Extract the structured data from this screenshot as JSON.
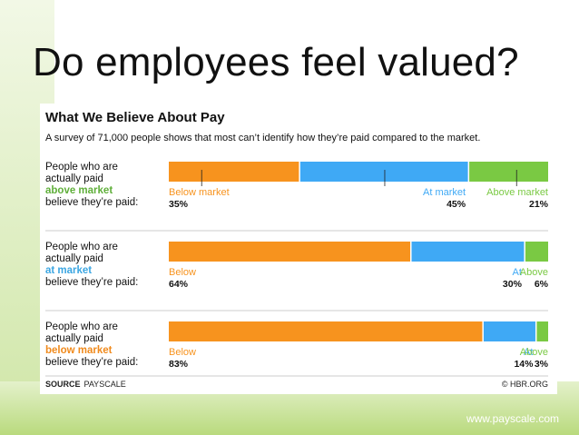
{
  "slide": {
    "title": "Do employees feel valued?",
    "website": "www.payscale.com"
  },
  "source": {
    "label": "SOURCE",
    "name": "PAYSCALE"
  },
  "credit": "© HBR.ORG",
  "rows": [
    {
      "line1": "People who are",
      "line2": "actually paid",
      "highlight": "above market",
      "line4": "believe they’re paid:"
    },
    {
      "line1": "People who are",
      "line2": "actually paid",
      "highlight": "at market",
      "line4": "believe they’re paid:"
    },
    {
      "line1": "People who are",
      "line2": "actually paid",
      "highlight": "below market",
      "line4": "believe they’re paid:"
    }
  ],
  "chart_data": {
    "type": "bar",
    "stacked": true,
    "orientation": "horizontal",
    "title": "What We Believe About Pay",
    "subtitle": "A survey of 71,000 people shows that most can’t identify how they’re paid compared to the market.",
    "xlim": [
      0,
      100
    ],
    "grid": false,
    "colors": {
      "below": "#f7931e",
      "at": "#3fa9f5",
      "above": "#7ac943"
    },
    "segment_labels": [
      [
        "Below market",
        "At market",
        "Above market"
      ],
      [
        "Below",
        "At",
        "Above"
      ],
      [
        "Below",
        "At",
        "Above"
      ]
    ],
    "series": [
      {
        "key": "below",
        "values": [
          35,
          64,
          83
        ],
        "labels": [
          "35%",
          "64%",
          "83%"
        ]
      },
      {
        "key": "at",
        "values": [
          45,
          30,
          14
        ],
        "labels": [
          "45%",
          "30%",
          "14%"
        ]
      },
      {
        "key": "above",
        "values": [
          21,
          6,
          3
        ],
        "labels": [
          "21%",
          "6%",
          "3%"
        ]
      }
    ]
  }
}
